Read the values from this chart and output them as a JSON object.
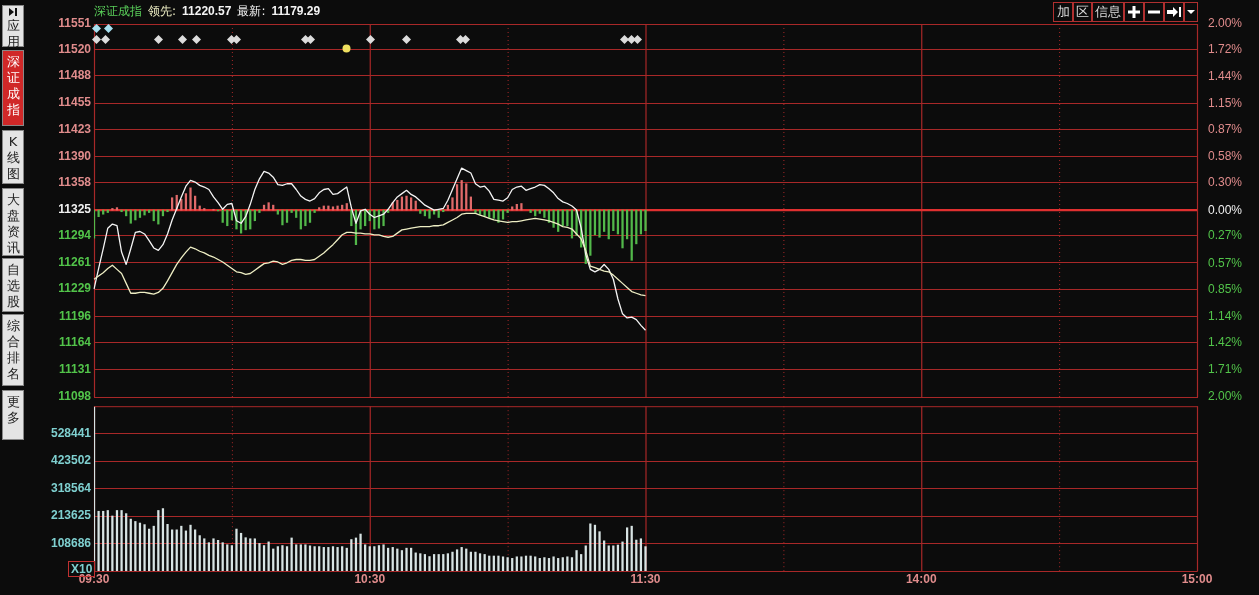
{
  "chart_data": [
    {
      "type": "line",
      "title": "深证成指",
      "legend": "top left",
      "grid": true,
      "tick_labels": "y",
      "marker": "none",
      "line_style": "solid",
      "categories": [
        null,
        null,
        null,
        null,
        null,
        null,
        null,
        null,
        null,
        null,
        null,
        null,
        null,
        null,
        null,
        null,
        null,
        null,
        null,
        null,
        null,
        null,
        null,
        null,
        null,
        null,
        null,
        null,
        null,
        null,
        null,
        null,
        null,
        null,
        null,
        null,
        null,
        null,
        null,
        null,
        null,
        null,
        null,
        null,
        null,
        null,
        null,
        null,
        null,
        null,
        null,
        null,
        null,
        null,
        null,
        null,
        null,
        null,
        null,
        null,
        null,
        null,
        null,
        null,
        null,
        null,
        null,
        null,
        null,
        null,
        null,
        null,
        null,
        null,
        null,
        null,
        null,
        null,
        null,
        null,
        null,
        null,
        null,
        null,
        null,
        null,
        null,
        null,
        null,
        null,
        null,
        null,
        null,
        null,
        null,
        null,
        null,
        null,
        null,
        null,
        null,
        null,
        null,
        null,
        null,
        null,
        null,
        null,
        null,
        null,
        null,
        null,
        null,
        null,
        null,
        null,
        null,
        null,
        null,
        null,
        null,
        null,
        null,
        null,
        null,
        null,
        null,
        null,
        null,
        null,
        null,
        null,
        null,
        null,
        null,
        null,
        null,
        null,
        null,
        null,
        null,
        null,
        null,
        null,
        null,
        null,
        null,
        null,
        null,
        null,
        null,
        null,
        null,
        null,
        null,
        null,
        null,
        null,
        null,
        null,
        null,
        null,
        null,
        null,
        null,
        null,
        null,
        null,
        null,
        null,
        null,
        null,
        null,
        null,
        null,
        null,
        null,
        null,
        null,
        null,
        null,
        null,
        null,
        null,
        null,
        null,
        null,
        null,
        null,
        null,
        null,
        null,
        null,
        null,
        null,
        null,
        null,
        null,
        null,
        null,
        null,
        null,
        null,
        null,
        null,
        null,
        null,
        null,
        null,
        null,
        null,
        null,
        null,
        null,
        null,
        null,
        null,
        null,
        null,
        null,
        null,
        null,
        null,
        null,
        null,
        null,
        null,
        null,
        null,
        null,
        null,
        null,
        null,
        null,
        null,
        null,
        null,
        null,
        null,
        null,
        null
      ],
      "ylim": [
        11098,
        11551
      ],
      "yticks": [
        11551,
        11520,
        11488,
        11455,
        11423,
        11390,
        11358,
        11325,
        11294,
        11261,
        11229,
        11196,
        11164,
        11131,
        11098
      ],
      "y2lim": [
        -2,
        2
      ],
      "y2ticks": [
        {
          "value": 2,
          "label": "2.00%"
        },
        {
          "value": 1.72,
          "label": "1.72%"
        },
        {
          "value": 1.44,
          "label": "1.44%"
        },
        {
          "value": 1.15,
          "label": "1.15%"
        },
        {
          "value": 0.87,
          "label": "0.87%"
        },
        {
          "value": 0.58,
          "label": "0.58%"
        },
        {
          "value": 0.3,
          "label": "0.30%"
        },
        {
          "value": 0,
          "label": "0.00%"
        },
        {
          "value": -0.27,
          "label": "0.27%"
        },
        {
          "value": -0.57,
          "label": "0.57%"
        },
        {
          "value": -0.85,
          "label": "0.85%"
        },
        {
          "value": -1.14,
          "label": "1.14%"
        },
        {
          "value": -1.42,
          "label": "1.42%"
        },
        {
          "value": -1.71,
          "label": "1.71%"
        },
        {
          "value": -2,
          "label": "2.00%"
        }
      ],
      "ref_lines": [
        {
          "axis": "y",
          "value": 11325,
          "color": "#e03030"
        }
      ],
      "annotations": [
        "应用",
        "深证成指",
        "K线图",
        "大盘资讯",
        "自选股",
        "综合排名",
        "更多",
        "加",
        "区",
        "信息",
        "11220.57",
        "11179.29"
      ],
      "series": [
        {
          "type": "bar",
          "base": [
            11325,
            11325,
            11325,
            11325,
            11325,
            11325,
            11325,
            11325,
            11325,
            11325,
            11325,
            11325,
            11325,
            11325,
            11325,
            11325,
            11325,
            11325,
            11325,
            11325,
            11325,
            11325,
            11325,
            11325,
            11325,
            null,
            11325,
            11325,
            11325,
            11325,
            11325,
            11325,
            11325,
            11325,
            11325,
            11325,
            11325,
            11325,
            11325,
            11325,
            11325,
            11325,
            11325,
            11325,
            11325,
            11325,
            11325,
            11325,
            11325,
            11325,
            11325,
            11325,
            11325,
            11325,
            11325,
            11325,
            11325,
            11325,
            11325,
            11325,
            11325,
            11325,
            11325,
            11325,
            11325,
            11325,
            11325,
            11325,
            11325,
            11325,
            11325,
            11325,
            11325,
            11325,
            11325,
            11325,
            11325,
            11325,
            11325,
            11325,
            11325,
            11325,
            11325,
            11325,
            11325,
            11325,
            11325,
            11325,
            11325,
            11325,
            11325,
            11325,
            11325,
            11325,
            null,
            11325,
            11325,
            11325,
            11325,
            11325,
            11325,
            11325,
            11325,
            11325,
            11325,
            11325,
            11325,
            11325,
            11325,
            11325,
            11325,
            11325,
            11325,
            11325,
            11325,
            11325,
            11325,
            11325,
            11325,
            11325,
            11325,
            null,
            null,
            null,
            null,
            null,
            null,
            null,
            null,
            null,
            null,
            null,
            null,
            null,
            null,
            null,
            null,
            null,
            null,
            null,
            null,
            null,
            null,
            null,
            null,
            null,
            null,
            null,
            null,
            null,
            null,
            null,
            null,
            null,
            null,
            null,
            null,
            null,
            null,
            null,
            null,
            null,
            null,
            null,
            null,
            null,
            null,
            null,
            null,
            null,
            null,
            null,
            null,
            null,
            null,
            null,
            null,
            null,
            null,
            null,
            null,
            null,
            null,
            null,
            null,
            null,
            null,
            null,
            null,
            null,
            null,
            null,
            null,
            null,
            null,
            null,
            null,
            null,
            null,
            null,
            null,
            null,
            null,
            null,
            null,
            null,
            null,
            null,
            null,
            null,
            null,
            null,
            null,
            null,
            null,
            null,
            null,
            null,
            null,
            null,
            null,
            null,
            null,
            null,
            null,
            null,
            null,
            null,
            null,
            null,
            null,
            null,
            null,
            null,
            null,
            null,
            null,
            null,
            null,
            null,
            null
          ],
          "values": [
            -34,
            -8,
            -5,
            -3,
            2,
            3,
            -2,
            -7,
            -16,
            -12,
            -9,
            -6,
            -3,
            -13,
            -17,
            -7,
            -2,
            15,
            18,
            13,
            20,
            27,
            17,
            5,
            2,
            null,
            1,
            -1,
            -15,
            -19,
            -12,
            -23,
            -28,
            -24,
            -23,
            -13,
            -3,
            6,
            9,
            6,
            -5,
            -18,
            -15,
            -3,
            -9,
            -23,
            -19,
            -15,
            -3,
            3,
            5,
            5,
            4,
            5,
            6,
            8,
            -19,
            -42,
            -23,
            -19,
            -13,
            -23,
            -22,
            -19,
            -3,
            9,
            12,
            16,
            17,
            15,
            11,
            -4,
            -7,
            -10,
            -5,
            -9,
            -2,
            6,
            15,
            31,
            36,
            32,
            16,
            -3,
            -5,
            -7,
            -9,
            -10,
            -15,
            -11,
            -3,
            4,
            7,
            8,
            null,
            -3,
            -7,
            -4,
            -9,
            -15,
            -21,
            -26,
            -19,
            -19,
            -34,
            -31,
            -45,
            -65,
            -55,
            -30,
            -33,
            -26,
            -35,
            -25,
            -29,
            -46,
            -35,
            -61,
            -41,
            -29,
            -25,
            -28,
            -22,
            null,
            null,
            null,
            null,
            null,
            null,
            null,
            null,
            null,
            null,
            null,
            null,
            null,
            null,
            null,
            null,
            null,
            null,
            null,
            null,
            null,
            null,
            null,
            null,
            null,
            null,
            null,
            null,
            null,
            null,
            null,
            null,
            null,
            null,
            null,
            null,
            null,
            null,
            null,
            null,
            null,
            null,
            null,
            null,
            null,
            null,
            null,
            null,
            null,
            null,
            null,
            null,
            null,
            null,
            null,
            null,
            null,
            null,
            null,
            null,
            null,
            null,
            null,
            null,
            null,
            null,
            null,
            null,
            null,
            null,
            null,
            null,
            null,
            null,
            null,
            null,
            null,
            null,
            null,
            null,
            null,
            null,
            null,
            null,
            null,
            null,
            null,
            null,
            null,
            null,
            null,
            null,
            null,
            null,
            null,
            null,
            null,
            null,
            null,
            null,
            null,
            null,
            null,
            null,
            null,
            null,
            null,
            null,
            null,
            null,
            null,
            null,
            null,
            null,
            null,
            null,
            null,
            null
          ],
          "colors": [
            "#52b84a",
            "#52b84a",
            "#52b84a",
            "#52b84a",
            "#e06a6a",
            "#e06a6a",
            "#52b84a",
            "#52b84a",
            "#52b84a",
            "#52b84a",
            "#52b84a",
            "#52b84a",
            "#52b84a",
            "#52b84a",
            "#52b84a",
            "#52b84a",
            "#52b84a",
            "#e06a6a",
            "#e06a6a",
            "#e06a6a",
            "#e06a6a",
            "#e06a6a",
            "#e06a6a",
            "#e06a6a",
            "#e06a6a",
            "#e06a6a",
            "#e06a6a",
            "#52b84a",
            "#52b84a",
            "#52b84a",
            "#52b84a",
            "#52b84a",
            "#52b84a",
            "#52b84a",
            "#52b84a",
            "#52b84a",
            "#52b84a",
            "#e06a6a",
            "#e06a6a",
            "#e06a6a",
            "#52b84a",
            "#52b84a",
            "#52b84a",
            "#52b84a",
            "#52b84a",
            "#52b84a",
            "#52b84a",
            "#52b84a",
            "#52b84a",
            "#e06a6a",
            "#e06a6a",
            "#e06a6a",
            "#e06a6a",
            "#e06a6a",
            "#e06a6a",
            "#e06a6a",
            "#52b84a",
            "#52b84a",
            "#52b84a",
            "#52b84a",
            "#52b84a",
            "#52b84a",
            "#52b84a",
            "#52b84a",
            "#52b84a",
            "#e06a6a",
            "#e06a6a",
            "#e06a6a",
            "#e06a6a",
            "#e06a6a",
            "#e06a6a",
            "#52b84a",
            "#52b84a",
            "#52b84a",
            "#52b84a",
            "#52b84a",
            "#52b84a",
            "#e06a6a",
            "#e06a6a",
            "#e06a6a",
            "#e06a6a",
            "#e06a6a",
            "#e06a6a",
            "#52b84a",
            "#52b84a",
            "#52b84a",
            "#52b84a",
            "#52b84a",
            "#52b84a",
            "#52b84a",
            "#52b84a",
            "#e06a6a",
            "#e06a6a",
            "#e06a6a",
            "#e06a6a",
            "#52b84a",
            "#52b84a",
            "#52b84a",
            "#52b84a",
            "#52b84a",
            "#52b84a",
            "#52b84a",
            "#52b84a",
            "#52b84a",
            "#52b84a",
            "#52b84a",
            "#52b84a",
            "#52b84a",
            "#52b84a",
            "#52b84a",
            "#52b84a",
            "#52b84a",
            "#52b84a",
            "#52b84a",
            "#52b84a",
            "#52b84a",
            "#52b84a",
            "#52b84a",
            "#52b84a",
            "#52b84a",
            "#52b84a",
            null,
            null,
            null,
            null,
            null,
            null,
            null,
            null,
            null,
            null,
            null,
            null,
            null,
            null,
            null,
            null,
            null,
            null,
            null,
            null,
            null,
            null,
            null,
            null,
            null,
            null,
            null,
            null,
            null,
            null,
            null,
            null,
            null,
            null,
            null,
            null,
            null,
            null,
            null,
            null,
            null,
            null,
            null,
            null,
            null,
            null,
            null,
            null,
            null,
            null,
            null,
            null,
            null,
            null,
            null,
            null,
            null,
            null,
            null,
            null,
            null,
            null,
            null,
            null,
            null,
            null,
            null,
            null,
            null,
            null,
            null,
            null,
            null,
            null,
            null,
            null,
            null,
            null,
            null,
            null,
            null,
            null,
            null,
            null,
            null,
            null,
            null,
            null,
            null,
            null,
            null,
            null,
            null,
            null,
            null,
            null,
            null,
            null,
            null,
            null,
            null,
            null,
            null,
            null,
            null,
            null,
            null,
            null,
            null,
            null,
            null,
            null,
            null,
            null,
            null,
            null,
            null,
            null,
            null,
            null
          ]
        },
        {
          "type": "line",
          "name": "领先:",
          "color": "#eeeec4",
          "values": [
            11241,
            11245,
            11249,
            11254,
            11258,
            11253,
            11248,
            11236,
            11224,
            11224,
            11225,
            11225,
            11224,
            11223,
            11225,
            11230,
            11239,
            11249,
            11259,
            11267,
            11274,
            11280,
            11278,
            11275,
            11273,
            11270,
            11268,
            11265,
            11262,
            11258,
            11254,
            11250,
            11249,
            11247,
            11248,
            11252,
            11256,
            11260,
            11261,
            11263,
            11262,
            11259,
            11261,
            11264,
            11265,
            11265,
            11264,
            11264,
            11265,
            11269,
            11273,
            11278,
            11283,
            11289,
            11295,
            11298,
            11298,
            11297,
            11297,
            11296,
            11296,
            11295,
            11295,
            11293,
            11292,
            11293,
            11297,
            11301,
            11302,
            11303,
            11304,
            11305,
            11305,
            11305,
            11306,
            11306,
            11307,
            11310,
            11313,
            11316,
            11320,
            11321,
            11321,
            11321,
            11319,
            11317,
            11315,
            11313,
            11312,
            11311,
            11310,
            11311,
            11311,
            11312,
            11313,
            11314,
            11315,
            11314,
            11313,
            11312,
            11310,
            11308,
            11305,
            11304,
            11302,
            11296,
            11290,
            11276,
            11257,
            11255,
            11253,
            11251,
            11250,
            11246,
            11241,
            11236,
            11231,
            11226,
            11224,
            11222,
            11221,
            null,
            null,
            null,
            null,
            null,
            null,
            null,
            null,
            null,
            null,
            null,
            null,
            null,
            null,
            null,
            null,
            null,
            null,
            null,
            null,
            null,
            null,
            null,
            null,
            null,
            null,
            null,
            null,
            null,
            null,
            null,
            null,
            null,
            null,
            null,
            null,
            null,
            null,
            null,
            null,
            null,
            null,
            null,
            null,
            null,
            null,
            null,
            null,
            null,
            null,
            null,
            null,
            null,
            null,
            null,
            null,
            null,
            null,
            null,
            null,
            null,
            null,
            null,
            null,
            null,
            null,
            null,
            null,
            null,
            null,
            null,
            null,
            null,
            null,
            null,
            null,
            null,
            null,
            null,
            null,
            null,
            null,
            null,
            null,
            null,
            null,
            null,
            null,
            null,
            null,
            null,
            null,
            null,
            null,
            null,
            null,
            null,
            null,
            null,
            null,
            null,
            null,
            null,
            null,
            null,
            null,
            null,
            null,
            null,
            null,
            null,
            null,
            null,
            null,
            null,
            null,
            null,
            null,
            null,
            null
          ]
        },
        {
          "type": "line",
          "name": "最新:",
          "color": "#f4f4f4",
          "values": [
            11229,
            11254,
            11278,
            11303,
            11308,
            11306,
            11274,
            11259,
            11278,
            11298,
            11299,
            11296,
            11288,
            11279,
            11276,
            11283,
            11296,
            11313,
            11327,
            11341,
            11354,
            11361,
            11359,
            11355,
            11353,
            11350,
            11341,
            11334,
            11326,
            11332,
            11333,
            11312,
            11309,
            11317,
            11332,
            11350,
            11363,
            11372,
            11370,
            11365,
            11356,
            11355,
            11357,
            11357,
            11350,
            11342,
            11338,
            11336,
            11339,
            11346,
            11350,
            11351,
            11344,
            11345,
            11349,
            11353,
            11328,
            11309,
            11324,
            11326,
            11320,
            11316,
            11318,
            11320,
            11326,
            11334,
            11341,
            11345,
            11349,
            11344,
            11341,
            11336,
            11331,
            11328,
            11325,
            11326,
            11327,
            11337,
            11350,
            11363,
            11376,
            11373,
            11370,
            11357,
            11353,
            11354,
            11348,
            11338,
            11337,
            11336,
            11340,
            11350,
            11353,
            11354,
            11349,
            11351,
            11353,
            11356,
            11355,
            11351,
            11346,
            11339,
            11335,
            11333,
            11330,
            11325,
            11303,
            11271,
            11253,
            11250,
            11253,
            11259,
            11253,
            11241,
            11217,
            11199,
            11194,
            11195,
            11192,
            11185,
            11179,
            null,
            null,
            null,
            null,
            null,
            null,
            null,
            null,
            null,
            null,
            null,
            null,
            null,
            null,
            null,
            null,
            null,
            null,
            null,
            null,
            null,
            null,
            null,
            null,
            null,
            null,
            null,
            null,
            null,
            null,
            null,
            null,
            null,
            null,
            null,
            null,
            null,
            null,
            null,
            null,
            null,
            null,
            null,
            null,
            null,
            null,
            null,
            null,
            null,
            null,
            null,
            null,
            null,
            null,
            null,
            null,
            null,
            null,
            null,
            null,
            null,
            null,
            null,
            null,
            null,
            null,
            null,
            null,
            null,
            null,
            null,
            null,
            null,
            null,
            null,
            null,
            null,
            null,
            null,
            null,
            null,
            null,
            null,
            null,
            null,
            null,
            null,
            null,
            null,
            null,
            null,
            null,
            null,
            null,
            null,
            null,
            null,
            null,
            null,
            null,
            null,
            null,
            null,
            null,
            null,
            null,
            null,
            null,
            null,
            null,
            null,
            null,
            null,
            null,
            null,
            null,
            null,
            null,
            null,
            null
          ]
        }
      ]
    },
    {
      "type": "bar",
      "ylabel": "X10",
      "grid": true,
      "color": "#d8e4e4",
      "categories": [
        "09:30",
        null,
        null,
        null,
        null,
        null,
        null,
        null,
        null,
        null,
        null,
        null,
        null,
        null,
        null,
        null,
        null,
        null,
        null,
        null,
        null,
        null,
        null,
        null,
        null,
        null,
        null,
        null,
        null,
        null,
        null,
        null,
        null,
        null,
        null,
        null,
        null,
        null,
        null,
        null,
        null,
        null,
        null,
        null,
        null,
        null,
        null,
        null,
        null,
        null,
        null,
        null,
        null,
        null,
        null,
        null,
        null,
        null,
        null,
        null,
        "10:30",
        null,
        null,
        null,
        null,
        null,
        null,
        null,
        null,
        null,
        null,
        null,
        null,
        null,
        null,
        null,
        null,
        null,
        null,
        null,
        null,
        null,
        null,
        null,
        null,
        null,
        null,
        null,
        null,
        null,
        null,
        null,
        null,
        null,
        null,
        null,
        null,
        null,
        null,
        null,
        null,
        null,
        null,
        null,
        null,
        null,
        null,
        null,
        null,
        null,
        null,
        null,
        null,
        null,
        null,
        null,
        null,
        null,
        null,
        null,
        "11:30",
        null,
        null,
        null,
        null,
        null,
        null,
        null,
        null,
        null,
        null,
        null,
        null,
        null,
        null,
        null,
        null,
        null,
        null,
        null,
        null,
        null,
        null,
        null,
        null,
        null,
        null,
        null,
        null,
        null,
        null,
        null,
        null,
        null,
        null,
        null,
        null,
        null,
        null,
        null,
        null,
        null,
        null,
        null,
        null,
        null,
        null,
        null,
        null,
        null,
        null,
        null,
        null,
        null,
        null,
        null,
        null,
        null,
        null,
        null,
        "14:00",
        null,
        null,
        null,
        null,
        null,
        null,
        null,
        null,
        null,
        null,
        null,
        null,
        null,
        null,
        null,
        null,
        null,
        null,
        null,
        null,
        null,
        null,
        null,
        null,
        null,
        null,
        null,
        null,
        null,
        null,
        null,
        null,
        null,
        null,
        null,
        null,
        null,
        null,
        null,
        null,
        null,
        null,
        null,
        null,
        null,
        null,
        null,
        null,
        null,
        null,
        null,
        null,
        null,
        null,
        null,
        null,
        null,
        null,
        null,
        "15:00"
      ],
      "ylim": [
        3747,
        633380
      ],
      "yticks": [
        108686,
        213625,
        318564,
        423502,
        528441
      ],
      "values": [
        630000,
        232000,
        232000,
        235000,
        214000,
        235000,
        235000,
        223000,
        202000,
        193000,
        187000,
        181000,
        164000,
        175000,
        235000,
        242000,
        182000,
        161000,
        161000,
        175000,
        157000,
        179000,
        161000,
        139000,
        127000,
        112000,
        127000,
        121000,
        112000,
        104000,
        101000,
        164000,
        148000,
        131000,
        127000,
        127000,
        109000,
        101000,
        115000,
        88000,
        97000,
        101000,
        97000,
        130000,
        104000,
        104000,
        104000,
        100000,
        97000,
        97000,
        94000,
        94000,
        97000,
        94000,
        97000,
        91000,
        124000,
        130000,
        145000,
        104000,
        97000,
        97000,
        101000,
        104000,
        91000,
        94000,
        88000,
        82000,
        91000,
        91000,
        73000,
        70000,
        67000,
        59000,
        67000,
        67000,
        67000,
        70000,
        76000,
        85000,
        94000,
        88000,
        76000,
        76000,
        70000,
        67000,
        61000,
        61000,
        61000,
        58000,
        55000,
        52000,
        58000,
        58000,
        61000,
        61000,
        58000,
        52000,
        55000,
        52000,
        58000,
        52000,
        55000,
        58000,
        55000,
        82000,
        67000,
        100000,
        184000,
        179000,
        154000,
        119000,
        100000,
        100000,
        103000,
        115000,
        169000,
        175000,
        122000,
        127000,
        97000,
        null,
        null,
        null,
        null,
        null,
        null,
        null,
        null,
        null,
        null,
        null,
        null,
        null,
        null,
        null,
        null,
        null,
        null,
        null,
        null,
        null,
        null,
        null,
        null,
        null,
        null,
        null,
        null,
        null,
        null,
        null,
        null,
        null,
        null,
        null,
        null,
        null,
        null,
        null,
        null,
        null,
        null,
        null,
        null,
        null,
        null,
        null,
        null,
        null,
        null,
        null,
        null,
        null,
        null,
        null,
        null,
        null,
        null,
        null,
        null,
        null,
        null,
        null,
        null,
        null,
        null,
        null,
        null,
        null,
        null,
        null,
        null,
        null,
        null,
        null,
        null,
        null,
        null,
        null,
        null,
        null,
        null,
        null,
        null,
        null,
        null,
        null,
        null,
        null,
        null,
        null,
        null,
        null,
        null,
        null,
        null,
        null,
        null,
        null,
        null,
        null,
        null,
        null,
        null,
        null,
        null,
        null,
        null,
        null,
        null,
        null,
        null,
        null,
        null,
        null,
        null,
        null,
        null,
        null,
        null
      ]
    }
  ]
}
